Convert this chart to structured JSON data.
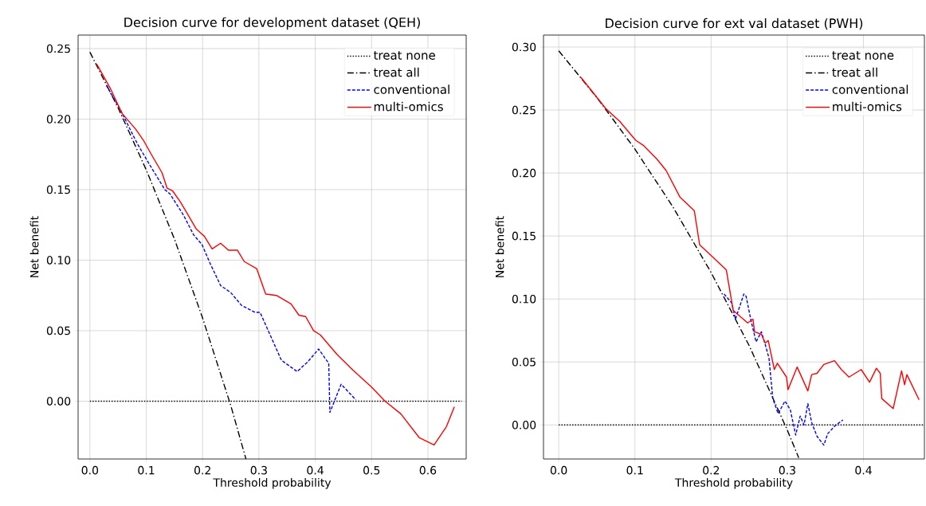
{
  "chart_data": [
    {
      "type": "line",
      "title": "Decision curve for development dataset (QEH)",
      "xlabel": "Threshold probability",
      "ylabel": "Net benefit",
      "grid": true,
      "legend": "top right",
      "xlim": [
        -0.021,
        0.668
      ],
      "ylim": [
        -0.041,
        0.2596
      ],
      "xticks": [
        {
          "value": 0,
          "label": "0.0"
        },
        {
          "value": 0.1,
          "label": "0.1"
        },
        {
          "value": 0.2,
          "label": "0.2"
        },
        {
          "value": 0.3,
          "label": "0.3"
        },
        {
          "value": 0.4,
          "label": "0.4"
        },
        {
          "value": 0.5,
          "label": "0.5"
        },
        {
          "value": 0.6,
          "label": "0.6"
        }
      ],
      "yticks": [
        {
          "value": 0,
          "label": "0.00"
        },
        {
          "value": 0.05,
          "label": "0.05"
        },
        {
          "value": 0.1,
          "label": "0.10"
        },
        {
          "value": 0.15,
          "label": "0.15"
        },
        {
          "value": 0.2,
          "label": "0.20"
        },
        {
          "value": 0.25,
          "label": "0.25"
        }
      ],
      "series": [
        {
          "name": "treat none",
          "color": "#000000",
          "line_style": "dotted",
          "x": [
            0,
            0.66
          ],
          "values": [
            0,
            0
          ]
        },
        {
          "name": "treat all",
          "color": "#000000",
          "line_style": "dashdot",
          "x": [
            0,
            0.05,
            0.1,
            0.15,
            0.2,
            0.25,
            0.277
          ],
          "values": [
            0.2475,
            0.208,
            0.164,
            0.115,
            0.059,
            -0.003,
            -0.041
          ]
        },
        {
          "name": "conventional",
          "color": "#0000ff",
          "line_style": "dashed",
          "x": [
            0.029,
            0.055,
            0.076,
            0.085,
            0.104,
            0.133,
            0.142,
            0.166,
            0.184,
            0.199,
            0.213,
            0.232,
            0.25,
            0.269,
            0.293,
            0.302,
            0.321,
            0.34,
            0.368,
            0.387,
            0.406,
            0.42,
            0.424,
            0.426,
            0.446,
            0.472
          ],
          "values": [
            0.224,
            0.206,
            0.189,
            0.182,
            0.169,
            0.15,
            0.147,
            0.132,
            0.118,
            0.111,
            0.098,
            0.082,
            0.077,
            0.068,
            0.063,
            0.063,
            0.046,
            0.029,
            0.021,
            0.028,
            0.037,
            0.029,
            0.027,
            -0.008,
            0.012,
            0.001
          ]
        },
        {
          "name": "multi-omics",
          "color": "#ff0000",
          "line_style": "solid",
          "x": [
            0.012,
            0.036,
            0.057,
            0.081,
            0.095,
            0.109,
            0.128,
            0.137,
            0.147,
            0.161,
            0.17,
            0.189,
            0.203,
            0.217,
            0.232,
            0.246,
            0.262,
            0.274,
            0.296,
            0.312,
            0.331,
            0.357,
            0.371,
            0.383,
            0.397,
            0.409,
            0.439,
            0.467,
            0.5,
            0.524,
            0.552,
            0.585,
            0.611,
            0.633,
            0.647
          ],
          "values": [
            0.239,
            0.222,
            0.204,
            0.193,
            0.185,
            0.175,
            0.162,
            0.151,
            0.149,
            0.141,
            0.135,
            0.122,
            0.117,
            0.108,
            0.112,
            0.107,
            0.107,
            0.099,
            0.094,
            0.076,
            0.075,
            0.069,
            0.061,
            0.06,
            0.05,
            0.047,
            0.033,
            0.022,
            0.01,
            0.0,
            -0.009,
            -0.026,
            -0.031,
            -0.018,
            -0.004
          ]
        }
      ]
    },
    {
      "type": "line",
      "title": "Decision curve for ext val dataset (PWH)",
      "xlabel": "Threshold probability",
      "ylabel": "Net benefit",
      "grid": true,
      "legend": "top right",
      "xlim": [
        -0.02,
        0.48
      ],
      "ylim": [
        -0.027,
        0.3095
      ],
      "xticks": [
        {
          "value": 0,
          "label": "0.0"
        },
        {
          "value": 0.1,
          "label": "0.1"
        },
        {
          "value": 0.2,
          "label": "0.2"
        },
        {
          "value": 0.3,
          "label": "0.3"
        },
        {
          "value": 0.4,
          "label": "0.4"
        }
      ],
      "yticks": [
        {
          "value": 0,
          "label": "0.00"
        },
        {
          "value": 0.05,
          "label": "0.05"
        },
        {
          "value": 0.1,
          "label": "0.10"
        },
        {
          "value": 0.15,
          "label": "0.15"
        },
        {
          "value": 0.2,
          "label": "0.20"
        },
        {
          "value": 0.25,
          "label": "0.25"
        },
        {
          "value": 0.3,
          "label": "0.30"
        }
      ],
      "series": [
        {
          "name": "treat none",
          "color": "#000000",
          "line_style": "dotted",
          "x": [
            0,
            0.48
          ],
          "values": [
            0,
            0
          ]
        },
        {
          "name": "treat all",
          "color": "#000000",
          "line_style": "dashdot",
          "x": [
            0,
            0.05,
            0.1,
            0.15,
            0.2,
            0.25,
            0.3,
            0.315
          ],
          "values": [
            0.297,
            0.26,
            0.219,
            0.173,
            0.121,
            0.063,
            -0.004,
            -0.026
          ]
        },
        {
          "name": "conventional",
          "color": "#0000ff",
          "line_style": "dashed",
          "x": [
            0.217,
            0.227,
            0.232,
            0.243,
            0.246,
            0.252,
            0.259,
            0.266,
            0.271,
            0.276,
            0.281,
            0.288,
            0.297,
            0.304,
            0.311,
            0.317,
            0.322,
            0.327,
            0.332,
            0.339,
            0.348,
            0.353,
            0.362,
            0.373
          ],
          "values": [
            0.104,
            0.097,
            0.084,
            0.104,
            0.102,
            0.084,
            0.066,
            0.074,
            0.064,
            0.053,
            0.021,
            0.009,
            0.019,
            0.012,
            -0.008,
            0.007,
            0.0,
            0.017,
            0.002,
            -0.009,
            -0.016,
            -0.007,
            -0.001,
            0.004
          ]
        },
        {
          "name": "multi-omics",
          "color": "#ff0000",
          "line_style": "solid",
          "x": [
            0.029,
            0.062,
            0.08,
            0.101,
            0.111,
            0.129,
            0.141,
            0.159,
            0.178,
            0.185,
            0.201,
            0.22,
            0.229,
            0.248,
            0.255,
            0.257,
            0.266,
            0.271,
            0.275,
            0.283,
            0.287,
            0.299,
            0.301,
            0.313,
            0.327,
            0.332,
            0.339,
            0.348,
            0.362,
            0.371,
            0.381,
            0.397,
            0.408,
            0.417,
            0.422,
            0.424,
            0.439,
            0.45,
            0.454,
            0.457,
            0.473
          ],
          "values": [
            0.276,
            0.251,
            0.241,
            0.226,
            0.222,
            0.211,
            0.202,
            0.181,
            0.17,
            0.143,
            0.134,
            0.123,
            0.091,
            0.081,
            0.084,
            0.074,
            0.072,
            0.065,
            0.067,
            0.044,
            0.049,
            0.038,
            0.028,
            0.046,
            0.027,
            0.04,
            0.041,
            0.048,
            0.051,
            0.044,
            0.038,
            0.044,
            0.034,
            0.045,
            0.041,
            0.021,
            0.013,
            0.043,
            0.032,
            0.04,
            0.02
          ]
        }
      ]
    }
  ]
}
